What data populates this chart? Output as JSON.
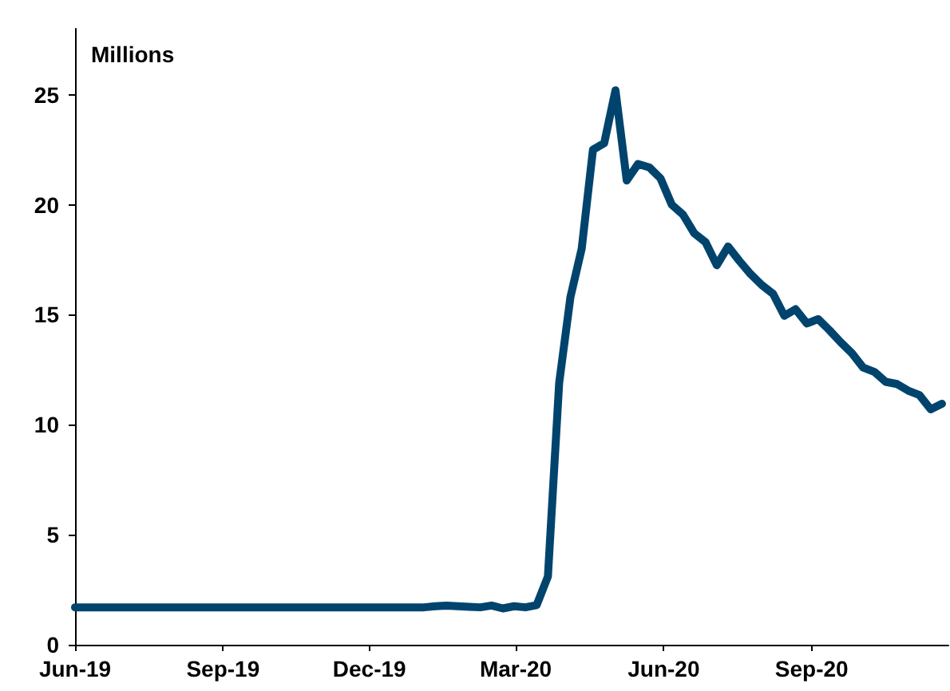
{
  "chart_data": {
    "type": "line",
    "ylabel": "Millions",
    "x": [
      "2019-06-01",
      "2019-06-08",
      "2019-06-15",
      "2019-06-22",
      "2019-06-29",
      "2019-07-06",
      "2019-07-13",
      "2019-07-20",
      "2019-07-27",
      "2019-08-03",
      "2019-08-10",
      "2019-08-17",
      "2019-08-24",
      "2019-08-31",
      "2019-09-07",
      "2019-09-14",
      "2019-09-21",
      "2019-09-28",
      "2019-10-05",
      "2019-10-12",
      "2019-10-19",
      "2019-10-26",
      "2019-11-02",
      "2019-11-09",
      "2019-11-16",
      "2019-11-23",
      "2019-11-30",
      "2019-12-07",
      "2019-12-14",
      "2019-12-21",
      "2019-12-28",
      "2020-01-04",
      "2020-01-11",
      "2020-01-18",
      "2020-01-25",
      "2020-02-01",
      "2020-02-08",
      "2020-02-15",
      "2020-02-22",
      "2020-02-29",
      "2020-03-07",
      "2020-03-14",
      "2020-03-21",
      "2020-03-28",
      "2020-04-04",
      "2020-04-11",
      "2020-04-18",
      "2020-04-25",
      "2020-05-02",
      "2020-05-09",
      "2020-05-16",
      "2020-05-23",
      "2020-05-30",
      "2020-06-06",
      "2020-06-13",
      "2020-06-20",
      "2020-06-27",
      "2020-07-04",
      "2020-07-11",
      "2020-07-18",
      "2020-07-25",
      "2020-08-01",
      "2020-08-08",
      "2020-08-15",
      "2020-08-22",
      "2020-08-29",
      "2020-09-05",
      "2020-09-12",
      "2020-09-19",
      "2020-09-26",
      "2020-10-03",
      "2020-10-10",
      "2020-10-17",
      "2020-10-24",
      "2020-10-31",
      "2020-11-07",
      "2020-11-14",
      "2020-11-21"
    ],
    "series": [
      {
        "color": "#00446e",
        "values": [
          1.7,
          1.7,
          1.7,
          1.7,
          1.7,
          1.7,
          1.7,
          1.7,
          1.7,
          1.7,
          1.7,
          1.7,
          1.7,
          1.7,
          1.7,
          1.7,
          1.7,
          1.7,
          1.7,
          1.7,
          1.7,
          1.7,
          1.7,
          1.7,
          1.7,
          1.7,
          1.7,
          1.7,
          1.7,
          1.7,
          1.7,
          1.7,
          1.75,
          1.78,
          1.75,
          1.72,
          1.7,
          1.78,
          1.65,
          1.75,
          1.7,
          1.8,
          3.1,
          11.9,
          15.8,
          18.0,
          22.5,
          22.8,
          25.2,
          21.1,
          21.85,
          21.7,
          21.2,
          20.0,
          19.55,
          18.7,
          18.3,
          17.25,
          18.1,
          17.45,
          16.85,
          16.35,
          15.95,
          14.95,
          15.25,
          14.6,
          14.8,
          14.3,
          13.75,
          13.25,
          12.6,
          12.4,
          11.95,
          11.85,
          11.55,
          11.35,
          10.7,
          10.95
        ]
      }
    ],
    "xlim": [
      "2019-06-01",
      "2020-11-25"
    ],
    "xticks": [
      {
        "value": "2019-06-01",
        "label": "Jun-19"
      },
      {
        "value": "2019-09-01",
        "label": "Sep-19"
      },
      {
        "value": "2019-12-01",
        "label": "Dec-19"
      },
      {
        "value": "2020-03-01",
        "label": "Mar-20"
      },
      {
        "value": "2020-06-01",
        "label": "Jun-20"
      },
      {
        "value": "2020-09-01",
        "label": "Sep-20"
      }
    ],
    "ylim": [
      0,
      28
    ],
    "yticks": [
      0,
      5,
      10,
      15,
      20,
      25
    ],
    "marker": "none",
    "line_style": "solid"
  }
}
